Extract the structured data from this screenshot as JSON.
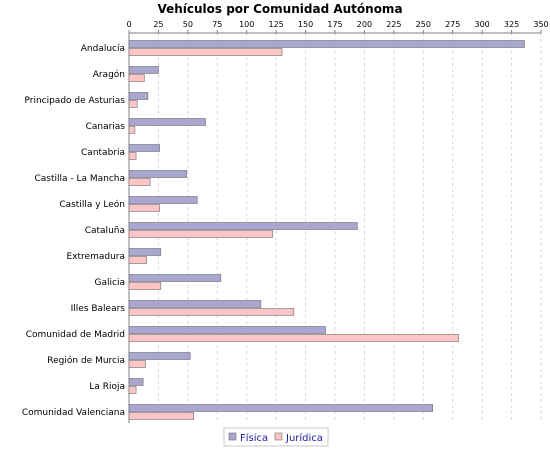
{
  "chart_data": {
    "type": "bar",
    "orientation": "horizontal",
    "title": "Vehículos por Comunidad Autónoma",
    "xlabel": "",
    "ylabel": "",
    "xlim": [
      0,
      350
    ],
    "x_ticks": [
      0,
      25,
      50,
      75,
      100,
      125,
      150,
      175,
      200,
      225,
      250,
      275,
      300,
      325,
      350
    ],
    "x_axis_position": "top",
    "grid": "vertical dashed",
    "legend_position": "bottom",
    "categories": [
      "Andalucía",
      "Aragón",
      "Principado de Asturias",
      "Canarias",
      "Cantabria",
      "Castilla - La Mancha",
      "Castilla y León",
      "Cataluña",
      "Extremadura",
      "Galicia",
      "Illes Balears",
      "Comunidad de Madrid",
      "Región de Murcia",
      "La Rioja",
      "Comunidad Valenciana"
    ],
    "series": [
      {
        "name": "Física",
        "color": "#aaa6d2",
        "values": [
          336,
          25,
          16,
          65,
          26,
          49,
          58,
          194,
          27,
          78,
          112,
          167,
          52,
          12,
          258
        ]
      },
      {
        "name": "Jurídica",
        "color": "#fcc5c5",
        "values": [
          130,
          13,
          7,
          5,
          6,
          18,
          26,
          122,
          15,
          27,
          140,
          280,
          14,
          6,
          55
        ]
      }
    ]
  }
}
